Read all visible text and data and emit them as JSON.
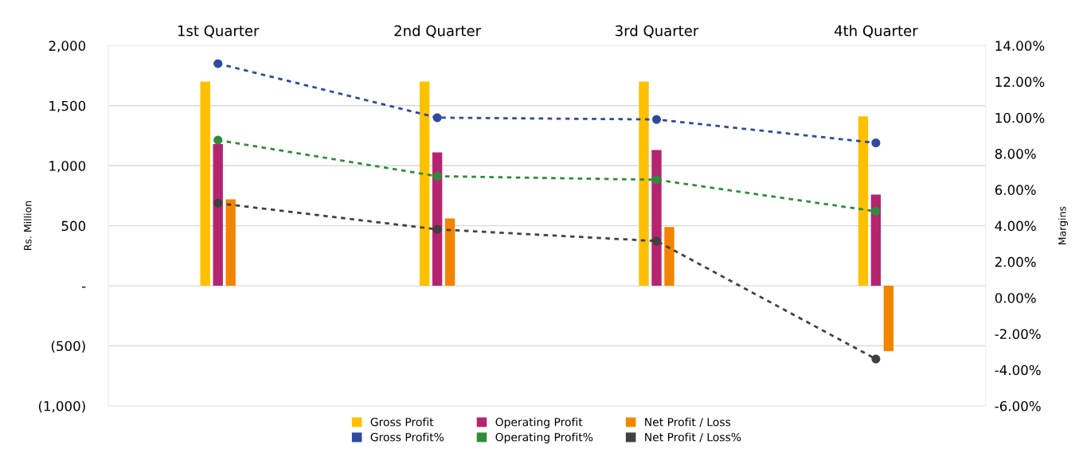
{
  "chart_data": {
    "type": "bar",
    "categories": [
      "1st Quarter",
      "2nd Quarter",
      "3rd Quarter",
      "4th Quarter"
    ],
    "ylabel": "Rs. Million",
    "y2label": "Margins",
    "ylim": [
      -1000,
      2000
    ],
    "yticks": [
      {
        "value": -1000,
        "label": "(1,000)"
      },
      {
        "value": -500,
        "label": "(500)"
      },
      {
        "value": 0,
        "label": "-"
      },
      {
        "value": 500,
        "label": "500"
      },
      {
        "value": 1000,
        "label": "1,000"
      },
      {
        "value": 1500,
        "label": "1,500"
      },
      {
        "value": 2000,
        "label": "2,000"
      }
    ],
    "y2lim": [
      -6,
      14
    ],
    "y2ticks": [
      {
        "value": -6,
        "label": "-6.00%"
      },
      {
        "value": -4,
        "label": "-4.00%"
      },
      {
        "value": -2,
        "label": "-2.00%"
      },
      {
        "value": 0,
        "label": "0.00%"
      },
      {
        "value": 2,
        "label": "2.00%"
      },
      {
        "value": 4,
        "label": "4.00%"
      },
      {
        "value": 6,
        "label": "6.00%"
      },
      {
        "value": 8,
        "label": "8.00%"
      },
      {
        "value": 10,
        "label": "10.00%"
      },
      {
        "value": 12,
        "label": "12.00%"
      },
      {
        "value": 14,
        "label": "14.00%"
      }
    ],
    "grid": "y",
    "legend": "bottom",
    "series": [
      {
        "name": "Gross Profit",
        "color": "#ffc000",
        "values": [
          1700,
          1700,
          1700,
          1410
        ]
      },
      {
        "name": "Operating Profit",
        "color": "#b5256f",
        "values": [
          1180,
          1110,
          1130,
          760
        ]
      },
      {
        "name": "Net Profit / Loss",
        "color": "#f28500",
        "values": [
          720,
          560,
          490,
          -545
        ]
      },
      {
        "name": "Gross Profit%",
        "type": "line",
        "axis": "y2",
        "color": "#2e4a9e",
        "marker": "circle",
        "line_style": "dotted",
        "values": [
          13.0,
          10.0,
          9.9,
          8.6
        ]
      },
      {
        "name": "Operating Profit%",
        "type": "line",
        "axis": "y2",
        "color": "#2e8b3a",
        "marker": "circle",
        "line_style": "dotted",
        "values": [
          8.75,
          6.75,
          6.55,
          4.8
        ]
      },
      {
        "name": "Net Profit / Loss%",
        "type": "line",
        "axis": "y2",
        "color": "#404040",
        "marker": "circle",
        "line_style": "dotted",
        "values": [
          5.25,
          3.8,
          3.15,
          -3.4
        ]
      }
    ]
  }
}
